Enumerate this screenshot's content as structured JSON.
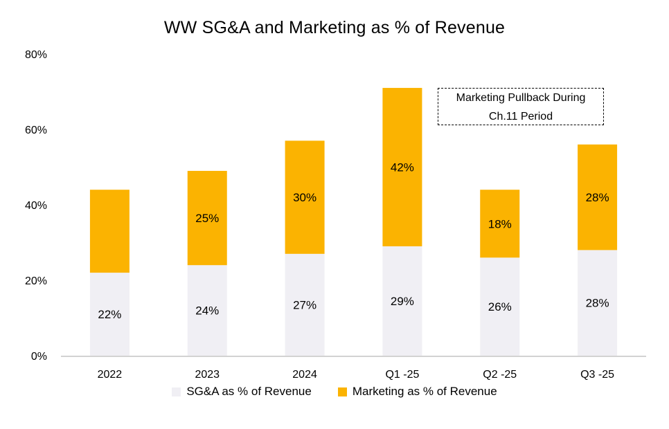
{
  "chart_data": {
    "type": "bar",
    "stacked": true,
    "title": "WW SG&A and Marketing as % of Revenue",
    "categories": [
      "2022",
      "2023",
      "2024",
      "Q1 -25",
      "Q2 -25",
      "Q3 -25"
    ],
    "series": [
      {
        "name": "SG&A  as % of Revenue",
        "color": "#f0eff4",
        "values": [
          22,
          24,
          27,
          29,
          26,
          28
        ],
        "labels": [
          "22%",
          "24%",
          "27%",
          "29%",
          "26%",
          "28%"
        ]
      },
      {
        "name": "Marketing  as % of Revenue",
        "color": "#fbb301",
        "values": [
          22,
          25,
          30,
          42,
          18,
          28
        ],
        "labels": [
          "",
          "25%",
          "30%",
          "42%",
          "18%",
          "28%"
        ]
      }
    ],
    "ylim": [
      0,
      80
    ],
    "yticks": [
      "0%",
      "20%",
      "40%",
      "60%",
      "80%"
    ],
    "ytick_values": [
      0,
      20,
      40,
      60,
      80
    ],
    "xlabel": "",
    "ylabel": "",
    "grid": false,
    "legend_position": "bottom",
    "annotation": {
      "line1": "Marketing Pullback During",
      "line2": "Ch.11 Period"
    }
  }
}
